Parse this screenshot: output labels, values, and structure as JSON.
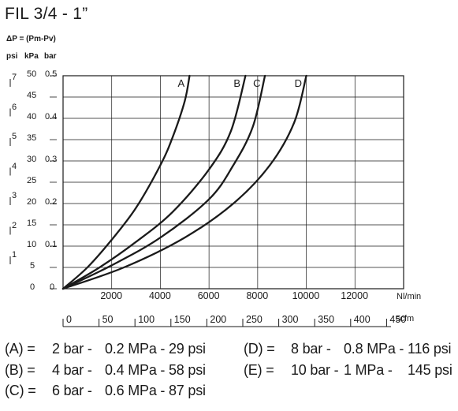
{
  "title": "FIL 3/4 - 1”",
  "dp_label": "ΔP = (Pm-Pv)",
  "units": {
    "psi": "psi",
    "kpa": "kPa",
    "bar": "bar"
  },
  "psi_ticks": [
    "7",
    "6",
    "5",
    "4",
    "3",
    "2",
    "1"
  ],
  "kpa_ticks": [
    "50",
    "45",
    "40",
    "35",
    "30",
    "25",
    "20",
    "15",
    "10",
    "5",
    "0"
  ],
  "bar_ticks": [
    "0.5",
    "0.4",
    "0.3",
    "0.2",
    "0.1",
    "0"
  ],
  "x_ticks": [
    "2000",
    "4000",
    "6000",
    "8000",
    "10000",
    "12000"
  ],
  "x_unit": "Nl/min",
  "scfm_ticks": [
    "0",
    "50",
    "100",
    "150",
    "200",
    "250",
    "300",
    "350",
    "400",
    "450"
  ],
  "scfm_unit": "scfm",
  "legend": [
    {
      "key": "(A) =",
      "bar": "2 bar -",
      "mpa": "0.2 MPa -",
      "psi": "29 psi"
    },
    {
      "key": "(B) =",
      "bar": "4 bar -",
      "mpa": "0.4 MPa -",
      "psi": "58 psi"
    },
    {
      "key": "(C) =",
      "bar": "6 bar -",
      "mpa": "0.6 MPa -",
      "psi": "87 psi"
    },
    {
      "key": "(D) =",
      "bar": "8 bar -",
      "mpa": "0.8 MPa -",
      "psi": "116 psi"
    },
    {
      "key": "(E) =",
      "bar": "10 bar -",
      "mpa": "1 MPa -",
      "psi": "145 psi"
    }
  ],
  "chart_data": {
    "type": "line",
    "title": "FIL 3/4 - 1”",
    "xlabel": "Nl/min",
    "ylabel": "ΔP = (Pm-Pv)",
    "xlim": [
      0,
      14000
    ],
    "ylim": [
      0,
      50
    ],
    "y_unit": "kPa",
    "grid": true,
    "series": [
      {
        "name": "A",
        "x": [
          0,
          1000,
          2000,
          3000,
          4000,
          4500,
          5000,
          5200
        ],
        "y": [
          0,
          5,
          11.5,
          19,
          29,
          35.5,
          44,
          50
        ]
      },
      {
        "name": "B",
        "x": [
          0,
          1500,
          3000,
          4500,
          6000,
          6900,
          7500
        ],
        "y": [
          0,
          5,
          11,
          18,
          28,
          37,
          50
        ]
      },
      {
        "name": "C",
        "x": [
          0,
          2000,
          4000,
          6000,
          7000,
          7800,
          8300
        ],
        "y": [
          0,
          5.5,
          12,
          21,
          29,
          38,
          50
        ]
      },
      {
        "name": "D",
        "x": [
          0,
          2500,
          5000,
          7000,
          8500,
          9500,
          10000
        ],
        "y": [
          0,
          5,
          12,
          20,
          29,
          39,
          50
        ]
      }
    ]
  }
}
